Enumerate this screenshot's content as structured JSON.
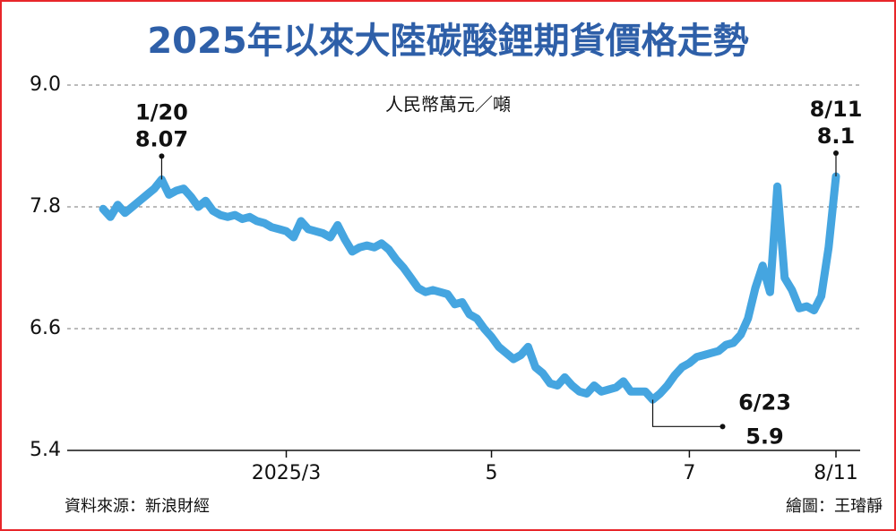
{
  "chart_data": {
    "type": "line",
    "title": "2025年以來大陸碳酸鋰期貨價格走勢",
    "unit": "人民幣萬元／噸",
    "source": "資料來源：新浪財經",
    "credit": "繪圖：王璿靜",
    "color": "#45a5e0",
    "grid": true,
    "ylim": [
      5.4,
      9.0
    ],
    "yticks": [
      5.4,
      6.6,
      7.8,
      {
        "value": 9.0,
        "label": "9.0"
      }
    ],
    "categories": [
      null,
      null,
      null,
      null,
      null,
      null,
      null,
      null,
      null,
      null,
      null,
      null,
      null,
      null,
      null,
      null,
      null,
      null,
      null,
      null,
      null,
      null,
      null,
      null,
      null,
      "2025/3",
      null,
      null,
      null,
      null,
      null,
      null,
      null,
      null,
      null,
      null,
      null,
      null,
      null,
      null,
      null,
      null,
      null,
      null,
      null,
      null,
      null,
      null,
      null,
      null,
      null,
      null,
      null,
      "5",
      null,
      null,
      null,
      null,
      null,
      null,
      null,
      null,
      null,
      null,
      null,
      null,
      null,
      null,
      null,
      null,
      null,
      null,
      null,
      null,
      null,
      null,
      null,
      null,
      null,
      null,
      "7",
      null,
      null,
      null,
      null,
      null,
      null,
      null,
      null,
      null,
      null,
      null,
      null,
      null,
      null,
      null,
      null,
      null,
      null,
      null,
      "8/11"
    ],
    "values": [
      7.78,
      7.7,
      7.82,
      7.74,
      7.8,
      7.86,
      7.92,
      7.98,
      8.07,
      7.92,
      7.96,
      7.98,
      7.9,
      7.8,
      7.86,
      7.76,
      7.72,
      7.7,
      7.72,
      7.68,
      7.7,
      7.66,
      7.64,
      7.6,
      7.58,
      7.56,
      7.5,
      7.66,
      7.58,
      7.56,
      7.54,
      7.5,
      7.62,
      7.48,
      7.36,
      7.4,
      7.42,
      7.4,
      7.44,
      7.38,
      7.28,
      7.2,
      7.1,
      7.0,
      6.96,
      6.98,
      6.96,
      6.94,
      6.84,
      6.86,
      6.74,
      6.7,
      6.6,
      6.52,
      6.42,
      6.36,
      6.3,
      6.34,
      6.42,
      6.22,
      6.16,
      6.06,
      6.04,
      6.12,
      6.04,
      5.98,
      5.96,
      6.04,
      5.98,
      6.0,
      6.02,
      6.08,
      5.98,
      5.98,
      5.98,
      5.9,
      5.96,
      6.04,
      6.14,
      6.22,
      6.26,
      6.32,
      6.34,
      6.36,
      6.38,
      6.44,
      6.46,
      6.54,
      6.7,
      7.0,
      7.22,
      6.96,
      8.0,
      7.1,
      6.98,
      6.8,
      6.82,
      6.78,
      6.92,
      7.4,
      8.1
    ],
    "annotations": [
      {
        "text": "1/20",
        "value": 8.07
      },
      {
        "text": "6/23",
        "value": 5.9
      },
      {
        "text": "8/11",
        "value": 8.1
      }
    ]
  }
}
